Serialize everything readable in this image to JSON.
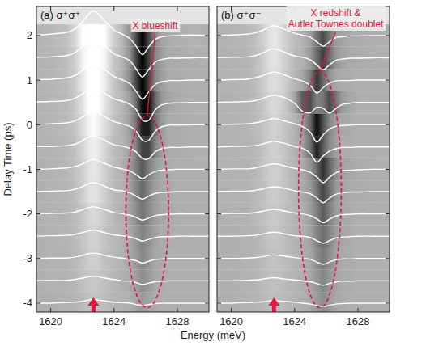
{
  "chart_data": [
    {
      "type": "line",
      "title": "(a) σ⁺σ⁺",
      "xlabel": "Energy (meV)",
      "ylabel": "Delay Time (ps)",
      "color": "#e3163c",
      "x": [
        1619,
        1620,
        1621,
        1621.5,
        1622,
        1622.4,
        1622.7,
        1623,
        1623.4,
        1624,
        1624.5,
        1625,
        1625.4,
        1625.8,
        1626.2,
        1626.6,
        1627,
        1627.5,
        1628,
        1629,
        1630
      ],
      "xlim": [
        1619.1,
        1630
      ],
      "xticks": [
        1620,
        1624,
        1628
      ],
      "ylim": [
        -4.2,
        2.65
      ],
      "yticks": [
        -4,
        -3,
        -2,
        -1,
        0,
        1,
        2
      ],
      "arrow_x": 1622.7,
      "annotations": [
        {
          "text": "X blueshift",
          "x": 1626.6,
          "y": 2.15,
          "target_x": 1626.1,
          "target_y": 0.2,
          "ellipse": {
            "cx": 1626.1,
            "cy": -1.95,
            "rx": 1.35,
            "ry": 2.15
          }
        }
      ],
      "series": [
        {
          "delay": -4,
          "color": "#ffffff",
          "values": [
            -4,
            -4,
            -3.99,
            -3.98,
            -3.96,
            -3.93,
            -3.92,
            -3.93,
            -3.95,
            -3.98,
            -3.99,
            -4,
            -4.03,
            -4.05,
            -4.03,
            -4.01,
            -4,
            -4,
            -4,
            -4,
            -4
          ]
        },
        {
          "delay": -3.5,
          "color": "#ffffff",
          "values": [
            -3.5,
            -3.49,
            -3.49,
            -3.47,
            -3.44,
            -3.41,
            -3.4,
            -3.41,
            -3.44,
            -3.47,
            -3.5,
            -3.51,
            -3.54,
            -3.58,
            -3.55,
            -3.52,
            -3.51,
            -3.5,
            -3.5,
            -3.5,
            -3.5
          ]
        },
        {
          "delay": -3,
          "color": "#ffffff",
          "values": [
            -3,
            -2.99,
            -2.99,
            -2.97,
            -2.93,
            -2.89,
            -2.88,
            -2.89,
            -2.93,
            -2.97,
            -2.99,
            -3.02,
            -3.05,
            -3.1,
            -3.06,
            -3.02,
            -3.01,
            -3,
            -3,
            -3,
            -3
          ]
        },
        {
          "delay": -2.5,
          "color": "#ffffff",
          "values": [
            -2.5,
            -2.49,
            -2.48,
            -2.46,
            -2.42,
            -2.38,
            -2.36,
            -2.38,
            -2.42,
            -2.47,
            -2.49,
            -2.52,
            -2.56,
            -2.61,
            -2.57,
            -2.53,
            -2.51,
            -2.51,
            -2.5,
            -2.5,
            -2.5
          ]
        },
        {
          "delay": -2,
          "color": "#ffffff",
          "values": [
            -2,
            -1.99,
            -1.98,
            -1.96,
            -1.91,
            -1.86,
            -1.84,
            -1.86,
            -1.9,
            -1.97,
            -1.99,
            -2.03,
            -2.08,
            -2.14,
            -2.09,
            -2.04,
            -2.02,
            -2.01,
            -2,
            -2,
            -2
          ]
        },
        {
          "delay": -1.5,
          "color": "#ffffff",
          "values": [
            -1.5,
            -1.49,
            -1.48,
            -1.45,
            -1.39,
            -1.32,
            -1.3,
            -1.32,
            -1.38,
            -1.46,
            -1.48,
            -1.53,
            -1.6,
            -1.67,
            -1.6,
            -1.54,
            -1.52,
            -1.51,
            -1.5,
            -1.5,
            -1.5
          ]
        },
        {
          "delay": -1,
          "color": "#ffffff",
          "values": [
            -1,
            -0.99,
            -0.97,
            -0.94,
            -0.88,
            -0.81,
            -0.78,
            -0.81,
            -0.87,
            -0.95,
            -0.99,
            -1.04,
            -1.12,
            -1.21,
            -1.12,
            -1.05,
            -1.02,
            -1.01,
            -1,
            -1,
            -1
          ]
        },
        {
          "delay": -0.5,
          "color": "#ffffff",
          "values": [
            -0.49,
            -0.49,
            -0.47,
            -0.44,
            -0.36,
            -0.28,
            -0.25,
            -0.28,
            -0.35,
            -0.45,
            -0.48,
            -0.53,
            -0.61,
            -0.76,
            -0.76,
            -0.61,
            -0.54,
            -0.51,
            -0.51,
            -0.5,
            -0.5
          ]
        },
        {
          "delay": 0,
          "color": "#ffffff",
          "values": [
            0.01,
            0.02,
            0.04,
            0.08,
            0.17,
            0.26,
            0.3,
            0.26,
            0.18,
            0.07,
            0.02,
            -0.04,
            -0.14,
            -0.35,
            -0.35,
            -0.15,
            -0.05,
            -0.01,
            -0.01,
            0,
            0
          ]
        },
        {
          "delay": 0.5,
          "color": "#ffffff",
          "values": [
            0.51,
            0.52,
            0.54,
            0.59,
            0.69,
            0.81,
            0.85,
            0.81,
            0.71,
            0.58,
            0.53,
            0.46,
            0.34,
            0.1,
            0.1,
            0.33,
            0.44,
            0.48,
            0.49,
            0.5,
            0.5
          ]
        },
        {
          "delay": 1,
          "color": "#ffffff",
          "values": [
            1.01,
            1.02,
            1.05,
            1.1,
            1.22,
            1.35,
            1.4,
            1.35,
            1.24,
            1.08,
            1.01,
            0.92,
            0.75,
            0.57,
            0.74,
            0.9,
            0.96,
            0.99,
            0.99,
            1,
            1
          ]
        },
        {
          "delay": 1.5,
          "color": "#ffffff",
          "values": [
            1.51,
            1.52,
            1.55,
            1.61,
            1.75,
            1.9,
            1.95,
            1.9,
            1.77,
            1.59,
            1.52,
            1.43,
            1.25,
            1.07,
            1.24,
            1.4,
            1.46,
            1.49,
            1.49,
            1.5,
            1.5
          ]
        },
        {
          "delay": 2,
          "color": "#ffffff",
          "values": [
            2.01,
            2.03,
            2.07,
            2.14,
            2.3,
            2.48,
            2.55,
            2.48,
            2.33,
            2.12,
            2.03,
            1.93,
            1.76,
            1.57,
            1.75,
            1.91,
            1.97,
            1.99,
            2,
            2.01,
            2
          ]
        }
      ]
    },
    {
      "type": "line",
      "title": "(b) σ⁺σ⁻",
      "color": "#e3163c",
      "tick_labels": "x",
      "x": [
        1619,
        1620,
        1621,
        1621.5,
        1622,
        1622.4,
        1622.7,
        1623,
        1623.4,
        1624,
        1624.5,
        1625,
        1625.4,
        1625.8,
        1626.2,
        1626.6,
        1627,
        1627.5,
        1628,
        1629,
        1630
      ],
      "xlim": [
        1619.1,
        1630
      ],
      "xticks": [
        1620,
        1624,
        1628
      ],
      "ylim": [
        -4.2,
        2.65
      ],
      "yticks": [
        -4,
        -3,
        -2,
        -1,
        0,
        1,
        2
      ],
      "arrow_x": 1622.7,
      "annotations": [
        {
          "text": "X redshift & Autler Townes doublet",
          "x": 1626.6,
          "y": 2.18,
          "target_x": 1625.6,
          "target_y": 1.2,
          "ellipse": {
            "cx": 1625.6,
            "cy": -1.45,
            "rx": 1.35,
            "ry": 2.65
          }
        }
      ],
      "series": [
        {
          "delay": -4,
          "color": "#ffffff",
          "values": [
            -4,
            -4,
            -3.99,
            -3.98,
            -3.97,
            -3.95,
            -3.94,
            -3.95,
            -3.96,
            -3.98,
            -4,
            -4.02,
            -4.05,
            -4.08,
            -4.05,
            -4.02,
            -4.01,
            -4,
            -4,
            -4,
            -4
          ]
        },
        {
          "delay": -3.5,
          "color": "#ffffff",
          "values": [
            -3.5,
            -3.5,
            -3.49,
            -3.48,
            -3.46,
            -3.44,
            -3.43,
            -3.44,
            -3.46,
            -3.48,
            -3.5,
            -3.52,
            -3.56,
            -3.6,
            -3.56,
            -3.53,
            -3.51,
            -3.51,
            -3.5,
            -3.5,
            -3.5
          ]
        },
        {
          "delay": -3,
          "color": "#ffffff",
          "values": [
            -3,
            -3,
            -2.99,
            -2.98,
            -2.96,
            -2.93,
            -2.92,
            -2.93,
            -2.95,
            -2.98,
            -3,
            -3.02,
            -3.08,
            -3.13,
            -3.08,
            -3.03,
            -3.01,
            -3.01,
            -3,
            -3,
            -3
          ]
        },
        {
          "delay": -2.5,
          "color": "#ffffff",
          "values": [
            -2.5,
            -2.5,
            -2.49,
            -2.48,
            -2.45,
            -2.42,
            -2.41,
            -2.42,
            -2.45,
            -2.49,
            -2.5,
            -2.53,
            -2.6,
            -2.66,
            -2.6,
            -2.54,
            -2.52,
            -2.51,
            -2.5,
            -2.5,
            -2.5
          ]
        },
        {
          "delay": -2,
          "color": "#ffffff",
          "values": [
            -2,
            -1.99,
            -1.99,
            -1.97,
            -1.94,
            -1.91,
            -1.9,
            -1.91,
            -1.94,
            -1.98,
            -2,
            -2.04,
            -2.11,
            -2.2,
            -2.12,
            -2.05,
            -2.02,
            -2.01,
            -2,
            -2,
            -2
          ]
        },
        {
          "delay": -1.5,
          "color": "#ffffff",
          "values": [
            -1.5,
            -1.49,
            -1.49,
            -1.47,
            -1.44,
            -1.4,
            -1.39,
            -1.4,
            -1.43,
            -1.48,
            -1.51,
            -1.55,
            -1.64,
            -1.75,
            -1.65,
            -1.56,
            -1.53,
            -1.51,
            -1.51,
            -1.5,
            -1.5
          ]
        },
        {
          "delay": -1,
          "color": "#ffffff",
          "values": [
            -1,
            -0.99,
            -0.99,
            -0.97,
            -0.93,
            -0.89,
            -0.88,
            -0.89,
            -0.93,
            -0.98,
            -1.01,
            -1.07,
            -1.17,
            -1.3,
            -1.18,
            -1.08,
            -1.03,
            -1.02,
            -1.01,
            -1,
            -1
          ]
        },
        {
          "delay": -0.5,
          "color": "#ffffff",
          "values": [
            -0.5,
            -0.49,
            -0.48,
            -0.47,
            -0.43,
            -0.39,
            -0.37,
            -0.39,
            -0.42,
            -0.49,
            -0.53,
            -0.65,
            -0.84,
            -0.7,
            -0.59,
            -0.54,
            -0.51,
            -0.51,
            -0.5,
            -0.5,
            -0.5
          ]
        },
        {
          "delay": 0,
          "color": "#ffffff",
          "values": [
            0,
            0.01,
            0.02,
            0.04,
            0.08,
            0.12,
            0.14,
            0.12,
            0.08,
            0.02,
            -0.04,
            -0.17,
            -0.39,
            -0.23,
            -0.1,
            -0.04,
            -0.02,
            -0.01,
            0,
            0,
            0
          ]
        },
        {
          "delay": 0.5,
          "color": "#ffffff",
          "values": [
            0.5,
            0.51,
            0.52,
            0.54,
            0.59,
            0.64,
            0.66,
            0.64,
            0.6,
            0.48,
            0.3,
            0.27,
            0.39,
            0.37,
            0.26,
            0.36,
            0.45,
            0.48,
            0.5,
            0.5,
            0.5
          ]
        },
        {
          "delay": 1,
          "color": "#ffffff",
          "values": [
            1,
            1.01,
            1.02,
            1.05,
            1.1,
            1.16,
            1.18,
            1.16,
            1.11,
            1.03,
            0.98,
            0.88,
            0.71,
            0.83,
            0.93,
            0.98,
            0.99,
            0.99,
            1,
            1,
            1
          ]
        },
        {
          "delay": 1.5,
          "color": "#ffffff",
          "values": [
            1.5,
            1.51,
            1.52,
            1.55,
            1.61,
            1.68,
            1.7,
            1.68,
            1.62,
            1.54,
            1.51,
            1.45,
            1.34,
            1.23,
            1.34,
            1.44,
            1.47,
            1.49,
            1.49,
            1.5,
            1.5
          ]
        },
        {
          "delay": 2,
          "color": "#ffffff",
          "values": [
            2,
            2.01,
            2.03,
            2.06,
            2.12,
            2.19,
            2.22,
            2.19,
            2.13,
            2.05,
            2.01,
            1.96,
            1.86,
            1.76,
            1.86,
            1.95,
            1.97,
            1.99,
            1.99,
            2,
            2
          ]
        }
      ]
    }
  ]
}
